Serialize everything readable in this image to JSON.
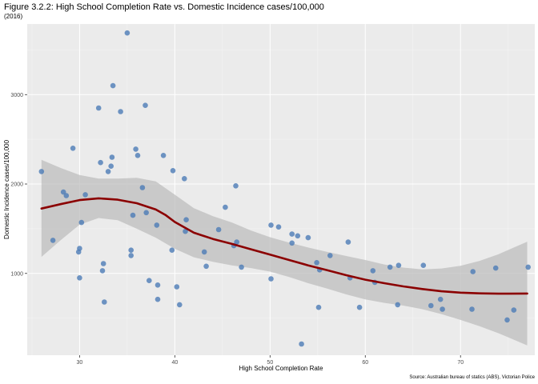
{
  "chart_data": {
    "type": "scatter",
    "title": "Figure 3.2.2: High School Completion Rate vs. Domestic Incidence cases/100,000",
    "subtitle": "(2016)",
    "xlabel": "High School Completion Rate",
    "ylabel": "Domestic Incidence cases/100,000",
    "caption": "Source: Australian bureau of statics (ABS), Victorian Police",
    "xlim": [
      24.5,
      77.8
    ],
    "ylim": [
      85,
      3790
    ],
    "xticks": [
      30,
      40,
      50,
      60,
      70
    ],
    "yticks": [
      1000,
      2000,
      3000
    ],
    "xtick_labels": [
      "30",
      "40",
      "50",
      "60",
      "70"
    ],
    "ytick_labels": [
      "1000",
      "2000",
      "3000"
    ],
    "grid": true,
    "colors": {
      "panel": "#ebebeb",
      "grid_major": "#ffffff",
      "points": "#4f7eb7",
      "smooth": "#8b0000",
      "ribbon": "#bdbdbd"
    },
    "points": [
      [
        26.0,
        2140
      ],
      [
        27.2,
        1370
      ],
      [
        28.3,
        1910
      ],
      [
        28.6,
        1870
      ],
      [
        29.3,
        2400
      ],
      [
        29.9,
        1240
      ],
      [
        30.0,
        1280
      ],
      [
        30.0,
        950
      ],
      [
        30.2,
        1570
      ],
      [
        30.6,
        1880
      ],
      [
        32.0,
        2850
      ],
      [
        32.2,
        2240
      ],
      [
        32.4,
        1030
      ],
      [
        32.5,
        1110
      ],
      [
        32.6,
        680
      ],
      [
        33.0,
        2140
      ],
      [
        33.3,
        2200
      ],
      [
        33.4,
        2300
      ],
      [
        33.5,
        3100
      ],
      [
        34.3,
        2810
      ],
      [
        35.0,
        3690
      ],
      [
        35.4,
        1260
      ],
      [
        35.4,
        1200
      ],
      [
        35.6,
        1650
      ],
      [
        35.9,
        2390
      ],
      [
        36.1,
        2320
      ],
      [
        36.6,
        1960
      ],
      [
        36.9,
        2880
      ],
      [
        37.0,
        1680
      ],
      [
        37.3,
        920
      ],
      [
        38.1,
        1540
      ],
      [
        38.2,
        870
      ],
      [
        38.2,
        710
      ],
      [
        38.8,
        2320
      ],
      [
        39.7,
        1260
      ],
      [
        39.8,
        2150
      ],
      [
        40.2,
        850
      ],
      [
        40.5,
        650
      ],
      [
        41.0,
        2060
      ],
      [
        41.1,
        1470
      ],
      [
        41.2,
        1600
      ],
      [
        43.1,
        1240
      ],
      [
        43.3,
        1080
      ],
      [
        44.6,
        1490
      ],
      [
        45.3,
        1740
      ],
      [
        46.2,
        1310
      ],
      [
        46.4,
        1980
      ],
      [
        46.5,
        1350
      ],
      [
        47.0,
        1070
      ],
      [
        50.1,
        1540
      ],
      [
        50.1,
        940
      ],
      [
        50.9,
        1520
      ],
      [
        52.3,
        1340
      ],
      [
        52.3,
        1440
      ],
      [
        52.9,
        1420
      ],
      [
        53.3,
        210
      ],
      [
        54.0,
        1400
      ],
      [
        54.9,
        1120
      ],
      [
        55.1,
        620
      ],
      [
        55.2,
        1040
      ],
      [
        56.3,
        1200
      ],
      [
        58.2,
        1350
      ],
      [
        58.4,
        950
      ],
      [
        59.4,
        620
      ],
      [
        60.8,
        1030
      ],
      [
        61.0,
        900
      ],
      [
        62.6,
        1070
      ],
      [
        63.4,
        650
      ],
      [
        63.5,
        1090
      ],
      [
        66.1,
        1090
      ],
      [
        66.9,
        640
      ],
      [
        67.9,
        710
      ],
      [
        68.1,
        600
      ],
      [
        71.2,
        600
      ],
      [
        71.3,
        1020
      ],
      [
        73.7,
        1060
      ],
      [
        74.9,
        480
      ],
      [
        75.6,
        590
      ],
      [
        77.1,
        1070
      ]
    ],
    "smooth": [
      [
        26,
        1725
      ],
      [
        28,
        1775
      ],
      [
        30,
        1820
      ],
      [
        32,
        1840
      ],
      [
        34,
        1825
      ],
      [
        36,
        1785
      ],
      [
        38,
        1715
      ],
      [
        39,
        1655
      ],
      [
        40,
        1575
      ],
      [
        42,
        1455
      ],
      [
        44,
        1385
      ],
      [
        46,
        1330
      ],
      [
        48,
        1270
      ],
      [
        50,
        1210
      ],
      [
        52,
        1150
      ],
      [
        54,
        1090
      ],
      [
        56,
        1035
      ],
      [
        58,
        980
      ],
      [
        60,
        930
      ],
      [
        62,
        890
      ],
      [
        64,
        855
      ],
      [
        66,
        825
      ],
      [
        68,
        800
      ],
      [
        70,
        785
      ],
      [
        72,
        777
      ],
      [
        74,
        773
      ],
      [
        77,
        775
      ]
    ],
    "ribbon_upper": [
      [
        26,
        2270
      ],
      [
        28,
        2180
      ],
      [
        30,
        2100
      ],
      [
        32,
        2060
      ],
      [
        34,
        2060
      ],
      [
        36,
        2070
      ],
      [
        38,
        2030
      ],
      [
        40,
        1880
      ],
      [
        42,
        1730
      ],
      [
        44,
        1640
      ],
      [
        46,
        1570
      ],
      [
        48,
        1480
      ],
      [
        50,
        1405
      ],
      [
        52,
        1345
      ],
      [
        54,
        1290
      ],
      [
        56,
        1240
      ],
      [
        58,
        1195
      ],
      [
        60,
        1150
      ],
      [
        62,
        1100
      ],
      [
        64,
        1065
      ],
      [
        66,
        1045
      ],
      [
        68,
        1055
      ],
      [
        70,
        1085
      ],
      [
        72,
        1140
      ],
      [
        74,
        1215
      ],
      [
        77,
        1355
      ]
    ],
    "ribbon_lower": [
      [
        26,
        1185
      ],
      [
        28,
        1370
      ],
      [
        30,
        1545
      ],
      [
        32,
        1620
      ],
      [
        34,
        1595
      ],
      [
        36,
        1500
      ],
      [
        38,
        1400
      ],
      [
        40,
        1275
      ],
      [
        42,
        1180
      ],
      [
        44,
        1130
      ],
      [
        46,
        1090
      ],
      [
        48,
        1060
      ],
      [
        50,
        1020
      ],
      [
        52,
        960
      ],
      [
        54,
        890
      ],
      [
        56,
        830
      ],
      [
        58,
        765
      ],
      [
        60,
        710
      ],
      [
        62,
        670
      ],
      [
        64,
        640
      ],
      [
        66,
        600
      ],
      [
        68,
        545
      ],
      [
        70,
        480
      ],
      [
        72,
        410
      ],
      [
        74,
        330
      ],
      [
        77,
        195
      ]
    ]
  }
}
